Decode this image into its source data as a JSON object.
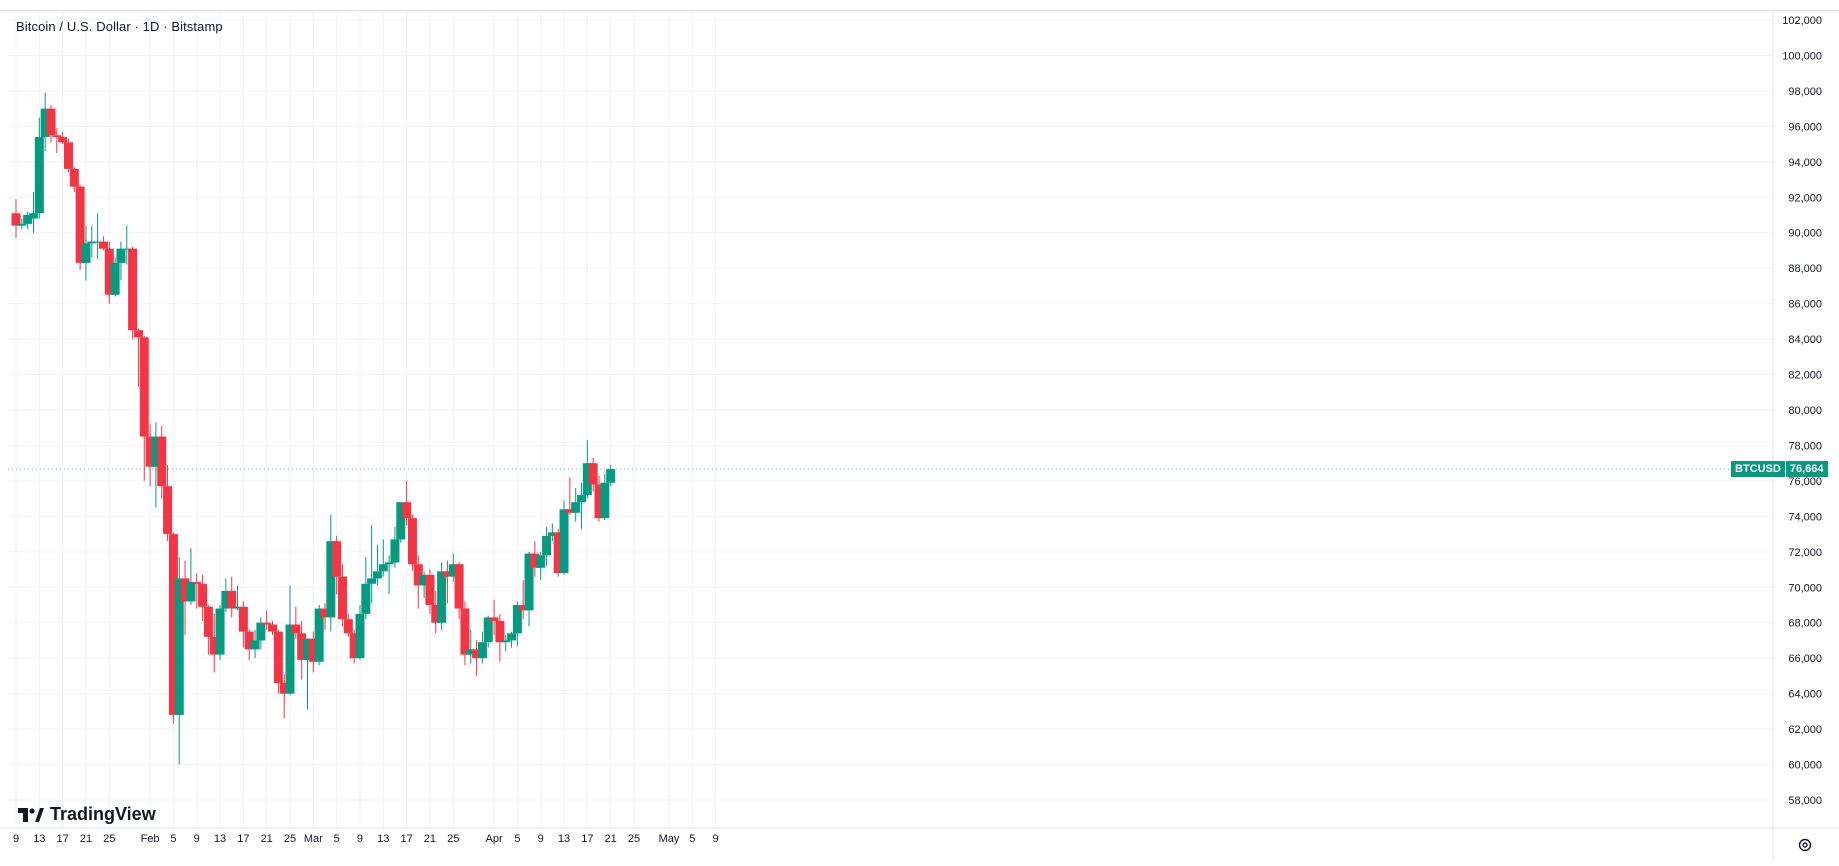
{
  "legend": {
    "title": "Bitcoin / U.S. Dollar · 1D · Bitstamp"
  },
  "price_tag": {
    "symbol": "BTCUSD",
    "value": "76,664"
  },
  "brand": {
    "name": "TradingView"
  },
  "icons": {
    "settings": "settings-gear-icon",
    "logo": "tradingview-logo-icon"
  },
  "colors": {
    "up": "#089981",
    "down": "#f23645",
    "grid": "#f0f3fa",
    "axis_text": "#131722",
    "background": "#ffffff"
  },
  "chart_data": {
    "type": "candlestick",
    "title": "Bitcoin / U.S. Dollar · 1D · Bitstamp",
    "symbol": "BTCUSD",
    "last_price": 76664,
    "ylim": [
      57000,
      102000
    ],
    "y_ticks": [
      "58,000",
      "60,000",
      "62,000",
      "64,000",
      "66,000",
      "68,000",
      "70,000",
      "72,000",
      "74,000",
      "76,000",
      "78,000",
      "80,000",
      "82,000",
      "84,000",
      "86,000",
      "88,000",
      "90,000",
      "92,000",
      "94,000",
      "96,000",
      "98,000",
      "100,000",
      "102,000"
    ],
    "y_tick_values": [
      58000,
      60000,
      62000,
      64000,
      66000,
      68000,
      70000,
      72000,
      74000,
      76000,
      78000,
      80000,
      82000,
      84000,
      86000,
      88000,
      90000,
      92000,
      94000,
      96000,
      98000,
      100000,
      102000
    ],
    "x_ticks": [
      {
        "date": "2026-01-09",
        "label": "9"
      },
      {
        "date": "2026-01-13",
        "label": "13"
      },
      {
        "date": "2026-01-17",
        "label": "17"
      },
      {
        "date": "2026-01-21",
        "label": "21"
      },
      {
        "date": "2026-01-25",
        "label": "25"
      },
      {
        "date": "2026-02-01",
        "label": "Feb"
      },
      {
        "date": "2026-02-05",
        "label": "5"
      },
      {
        "date": "2026-02-09",
        "label": "9"
      },
      {
        "date": "2026-02-13",
        "label": "13"
      },
      {
        "date": "2026-02-17",
        "label": "17"
      },
      {
        "date": "2026-02-21",
        "label": "21"
      },
      {
        "date": "2026-02-25",
        "label": "25"
      },
      {
        "date": "2026-03-01",
        "label": "Mar"
      },
      {
        "date": "2026-03-05",
        "label": "5"
      },
      {
        "date": "2026-03-09",
        "label": "9"
      },
      {
        "date": "2026-03-13",
        "label": "13"
      },
      {
        "date": "2026-03-17",
        "label": "17"
      },
      {
        "date": "2026-03-21",
        "label": "21"
      },
      {
        "date": "2026-03-25",
        "label": "25"
      },
      {
        "date": "2026-04-01",
        "label": "Apr"
      },
      {
        "date": "2026-04-05",
        "label": "5"
      },
      {
        "date": "2026-04-09",
        "label": "9"
      },
      {
        "date": "2026-04-13",
        "label": "13"
      },
      {
        "date": "2026-04-17",
        "label": "17"
      },
      {
        "date": "2026-04-21",
        "label": "21"
      },
      {
        "date": "2026-04-25",
        "label": "25"
      },
      {
        "date": "2026-05-01",
        "label": "May"
      },
      {
        "date": "2026-05-05",
        "label": "5"
      },
      {
        "date": "2026-05-09",
        "label": "9"
      }
    ],
    "x_range": [
      "2026-01-09",
      "2026-05-12"
    ],
    "candles": [
      {
        "date": "2026-01-09",
        "open": 91100,
        "high": 91900,
        "low": 89700,
        "close": 90400
      },
      {
        "date": "2026-01-10",
        "open": 90400,
        "high": 90800,
        "low": 90200,
        "close": 90500
      },
      {
        "date": "2026-01-11",
        "open": 90500,
        "high": 91200,
        "low": 90200,
        "close": 91000
      },
      {
        "date": "2026-01-12",
        "open": 90800,
        "high": 92300,
        "low": 90000,
        "close": 91100
      },
      {
        "date": "2026-01-13",
        "open": 91100,
        "high": 96500,
        "low": 90800,
        "close": 95400
      },
      {
        "date": "2026-01-14",
        "open": 95400,
        "high": 97900,
        "low": 94600,
        "close": 97000
      },
      {
        "date": "2026-01-15",
        "open": 97000,
        "high": 97200,
        "low": 95100,
        "close": 95500
      },
      {
        "date": "2026-01-16",
        "open": 95500,
        "high": 95900,
        "low": 94500,
        "close": 95400
      },
      {
        "date": "2026-01-17",
        "open": 95400,
        "high": 95700,
        "low": 95000,
        "close": 95100
      },
      {
        "date": "2026-01-18",
        "open": 95100,
        "high": 95300,
        "low": 93400,
        "close": 93600
      },
      {
        "date": "2026-01-19",
        "open": 93600,
        "high": 93700,
        "low": 92300,
        "close": 92600
      },
      {
        "date": "2026-01-20",
        "open": 92600,
        "high": 92700,
        "low": 87900,
        "close": 88300
      },
      {
        "date": "2026-01-21",
        "open": 88300,
        "high": 90400,
        "low": 87300,
        "close": 89400
      },
      {
        "date": "2026-01-22",
        "open": 89400,
        "high": 90400,
        "low": 88600,
        "close": 89500
      },
      {
        "date": "2026-01-23",
        "open": 89500,
        "high": 91100,
        "low": 88500,
        "close": 89500
      },
      {
        "date": "2026-01-24",
        "open": 89500,
        "high": 89800,
        "low": 89000,
        "close": 89100
      },
      {
        "date": "2026-01-25",
        "open": 89100,
        "high": 89500,
        "low": 86000,
        "close": 86500
      },
      {
        "date": "2026-01-26",
        "open": 86500,
        "high": 88600,
        "low": 86400,
        "close": 88300
      },
      {
        "date": "2026-01-27",
        "open": 88300,
        "high": 89500,
        "low": 87300,
        "close": 89100
      },
      {
        "date": "2026-01-28",
        "open": 89100,
        "high": 90400,
        "low": 88200,
        "close": 89100
      },
      {
        "date": "2026-01-29",
        "open": 89100,
        "high": 89200,
        "low": 84000,
        "close": 84500
      },
      {
        "date": "2026-01-30",
        "open": 84500,
        "high": 84600,
        "low": 81300,
        "close": 84100
      },
      {
        "date": "2026-01-31",
        "open": 84100,
        "high": 84200,
        "low": 76000,
        "close": 78500
      },
      {
        "date": "2026-02-01",
        "open": 78500,
        "high": 79200,
        "low": 75700,
        "close": 76800
      },
      {
        "date": "2026-02-02",
        "open": 76800,
        "high": 79300,
        "low": 74500,
        "close": 78500
      },
      {
        "date": "2026-02-03",
        "open": 78500,
        "high": 79100,
        "low": 75000,
        "close": 75700
      },
      {
        "date": "2026-02-04",
        "open": 75700,
        "high": 76900,
        "low": 72600,
        "close": 73000
      },
      {
        "date": "2026-02-05",
        "open": 73000,
        "high": 73100,
        "low": 62300,
        "close": 62800
      },
      {
        "date": "2026-02-06",
        "open": 62800,
        "high": 71700,
        "low": 60000,
        "close": 70500
      },
      {
        "date": "2026-02-07",
        "open": 70500,
        "high": 71500,
        "low": 67300,
        "close": 69200
      },
      {
        "date": "2026-02-08",
        "open": 69200,
        "high": 72200,
        "low": 69000,
        "close": 70300
      },
      {
        "date": "2026-02-09",
        "open": 70300,
        "high": 70800,
        "low": 68800,
        "close": 70200
      },
      {
        "date": "2026-02-10",
        "open": 70200,
        "high": 70700,
        "low": 68100,
        "close": 68900
      },
      {
        "date": "2026-02-11",
        "open": 68900,
        "high": 69000,
        "low": 66200,
        "close": 67200
      },
      {
        "date": "2026-02-12",
        "open": 67200,
        "high": 68500,
        "low": 65200,
        "close": 66200
      },
      {
        "date": "2026-02-13",
        "open": 66200,
        "high": 69000,
        "low": 65900,
        "close": 68800
      },
      {
        "date": "2026-02-14",
        "open": 68800,
        "high": 70500,
        "low": 68600,
        "close": 69800
      },
      {
        "date": "2026-02-15",
        "open": 69800,
        "high": 70600,
        "low": 68300,
        "close": 68800
      },
      {
        "date": "2026-02-16",
        "open": 68800,
        "high": 70100,
        "low": 68700,
        "close": 68900
      },
      {
        "date": "2026-02-17",
        "open": 68900,
        "high": 69200,
        "low": 66600,
        "close": 67500
      },
      {
        "date": "2026-02-18",
        "open": 67500,
        "high": 67600,
        "low": 65900,
        "close": 66500
      },
      {
        "date": "2026-02-19",
        "open": 66500,
        "high": 67600,
        "low": 66000,
        "close": 67000
      },
      {
        "date": "2026-02-20",
        "open": 67000,
        "high": 68300,
        "low": 66500,
        "close": 68000
      },
      {
        "date": "2026-02-21",
        "open": 68000,
        "high": 68700,
        "low": 67600,
        "close": 67900
      },
      {
        "date": "2026-02-22",
        "open": 67900,
        "high": 68100,
        "low": 67300,
        "close": 67500
      },
      {
        "date": "2026-02-23",
        "open": 67500,
        "high": 67600,
        "low": 64000,
        "close": 64600
      },
      {
        "date": "2026-02-24",
        "open": 64600,
        "high": 65100,
        "low": 62600,
        "close": 64000
      },
      {
        "date": "2026-02-25",
        "open": 64000,
        "high": 70100,
        "low": 63900,
        "close": 67900
      },
      {
        "date": "2026-02-26",
        "open": 67900,
        "high": 68900,
        "low": 67100,
        "close": 67400
      },
      {
        "date": "2026-02-27",
        "open": 67400,
        "high": 68100,
        "low": 64800,
        "close": 65900
      },
      {
        "date": "2026-02-28",
        "open": 65900,
        "high": 67100,
        "low": 63100,
        "close": 67100
      },
      {
        "date": "2026-03-01",
        "open": 67100,
        "high": 67500,
        "low": 65200,
        "close": 65800
      },
      {
        "date": "2026-03-02",
        "open": 65800,
        "high": 69000,
        "low": 65600,
        "close": 68800
      },
      {
        "date": "2026-03-03",
        "open": 68800,
        "high": 69100,
        "low": 67600,
        "close": 68300
      },
      {
        "date": "2026-03-04",
        "open": 68300,
        "high": 74100,
        "low": 67500,
        "close": 72600
      },
      {
        "date": "2026-03-05",
        "open": 72600,
        "high": 72900,
        "low": 69600,
        "close": 70600
      },
      {
        "date": "2026-03-06",
        "open": 70600,
        "high": 71300,
        "low": 67800,
        "close": 68200
      },
      {
        "date": "2026-03-07",
        "open": 68200,
        "high": 68500,
        "low": 67200,
        "close": 67400
      },
      {
        "date": "2026-03-08",
        "open": 67400,
        "high": 67600,
        "low": 65700,
        "close": 66000
      },
      {
        "date": "2026-03-09",
        "open": 66000,
        "high": 69000,
        "low": 65900,
        "close": 68500
      },
      {
        "date": "2026-03-10",
        "open": 68500,
        "high": 71700,
        "low": 68200,
        "close": 70200
      },
      {
        "date": "2026-03-11",
        "open": 70200,
        "high": 73500,
        "low": 69100,
        "close": 70500
      },
      {
        "date": "2026-03-12",
        "open": 70500,
        "high": 72400,
        "low": 70100,
        "close": 70900
      },
      {
        "date": "2026-03-13",
        "open": 70900,
        "high": 72700,
        "low": 70600,
        "close": 71300
      },
      {
        "date": "2026-03-14",
        "open": 71300,
        "high": 71800,
        "low": 69600,
        "close": 71400
      },
      {
        "date": "2026-03-15",
        "open": 71400,
        "high": 73400,
        "low": 71100,
        "close": 72700
      },
      {
        "date": "2026-03-16",
        "open": 72700,
        "high": 74700,
        "low": 72500,
        "close": 74800
      },
      {
        "date": "2026-03-17",
        "open": 74800,
        "high": 76000,
        "low": 73500,
        "close": 73900
      },
      {
        "date": "2026-03-18",
        "open": 73900,
        "high": 74100,
        "low": 70900,
        "close": 71300
      },
      {
        "date": "2026-03-19",
        "open": 71300,
        "high": 71800,
        "low": 68800,
        "close": 70100
      },
      {
        "date": "2026-03-20",
        "open": 70100,
        "high": 70900,
        "low": 69400,
        "close": 70700
      },
      {
        "date": "2026-03-21",
        "open": 70700,
        "high": 71000,
        "low": 68500,
        "close": 69000
      },
      {
        "date": "2026-03-22",
        "open": 69000,
        "high": 69800,
        "low": 67400,
        "close": 68000
      },
      {
        "date": "2026-03-23",
        "open": 68000,
        "high": 71400,
        "low": 67600,
        "close": 70900
      },
      {
        "date": "2026-03-24",
        "open": 70900,
        "high": 71500,
        "low": 69100,
        "close": 70600
      },
      {
        "date": "2026-03-25",
        "open": 70600,
        "high": 71900,
        "low": 70300,
        "close": 71300
      },
      {
        "date": "2026-03-26",
        "open": 71300,
        "high": 71400,
        "low": 68200,
        "close": 68800
      },
      {
        "date": "2026-03-27",
        "open": 68800,
        "high": 69200,
        "low": 65600,
        "close": 66200
      },
      {
        "date": "2026-03-28",
        "open": 66200,
        "high": 67600,
        "low": 65700,
        "close": 66500
      },
      {
        "date": "2026-03-29",
        "open": 66500,
        "high": 67000,
        "low": 65000,
        "close": 66000
      },
      {
        "date": "2026-03-30",
        "open": 66000,
        "high": 67500,
        "low": 65700,
        "close": 66900
      },
      {
        "date": "2026-03-31",
        "open": 66900,
        "high": 68400,
        "low": 66600,
        "close": 68300
      },
      {
        "date": "2026-04-01",
        "open": 68300,
        "high": 69300,
        "low": 67300,
        "close": 68100
      },
      {
        "date": "2026-04-02",
        "open": 68100,
        "high": 68500,
        "low": 65800,
        "close": 66900
      },
      {
        "date": "2026-04-03",
        "open": 66900,
        "high": 67300,
        "low": 66400,
        "close": 67000
      },
      {
        "date": "2026-04-04",
        "open": 67000,
        "high": 67500,
        "low": 66600,
        "close": 67400
      },
      {
        "date": "2026-04-05",
        "open": 67400,
        "high": 69200,
        "low": 66700,
        "close": 69000
      },
      {
        "date": "2026-04-06",
        "open": 69000,
        "high": 70400,
        "low": 68200,
        "close": 68700
      },
      {
        "date": "2026-04-07",
        "open": 68700,
        "high": 72000,
        "low": 67800,
        "close": 71900
      },
      {
        "date": "2026-04-08",
        "open": 71900,
        "high": 72600,
        "low": 70600,
        "close": 71100
      },
      {
        "date": "2026-04-09",
        "open": 71100,
        "high": 72000,
        "low": 70400,
        "close": 71800
      },
      {
        "date": "2026-04-10",
        "open": 71800,
        "high": 73400,
        "low": 71200,
        "close": 72900
      },
      {
        "date": "2026-04-11",
        "open": 72900,
        "high": 73600,
        "low": 72600,
        "close": 73100
      },
      {
        "date": "2026-04-12",
        "open": 73100,
        "high": 73300,
        "low": 70600,
        "close": 70800
      },
      {
        "date": "2026-04-13",
        "open": 70800,
        "high": 74900,
        "low": 70700,
        "close": 74400
      },
      {
        "date": "2026-04-14",
        "open": 74400,
        "high": 76200,
        "low": 74100,
        "close": 74200
      },
      {
        "date": "2026-04-15",
        "open": 74200,
        "high": 75600,
        "low": 73700,
        "close": 74800
      },
      {
        "date": "2026-04-16",
        "open": 74800,
        "high": 75900,
        "low": 73300,
        "close": 75200
      },
      {
        "date": "2026-04-17",
        "open": 75200,
        "high": 78300,
        "low": 75000,
        "close": 77000
      },
      {
        "date": "2026-04-18",
        "open": 77000,
        "high": 77300,
        "low": 75400,
        "close": 75800
      },
      {
        "date": "2026-04-19",
        "open": 75800,
        "high": 76300,
        "low": 73700,
        "close": 73900
      },
      {
        "date": "2026-04-20",
        "open": 73900,
        "high": 76400,
        "low": 73800,
        "close": 75900
      },
      {
        "date": "2026-04-21",
        "open": 75900,
        "high": 76900,
        "low": 75700,
        "close": 76664
      }
    ]
  }
}
